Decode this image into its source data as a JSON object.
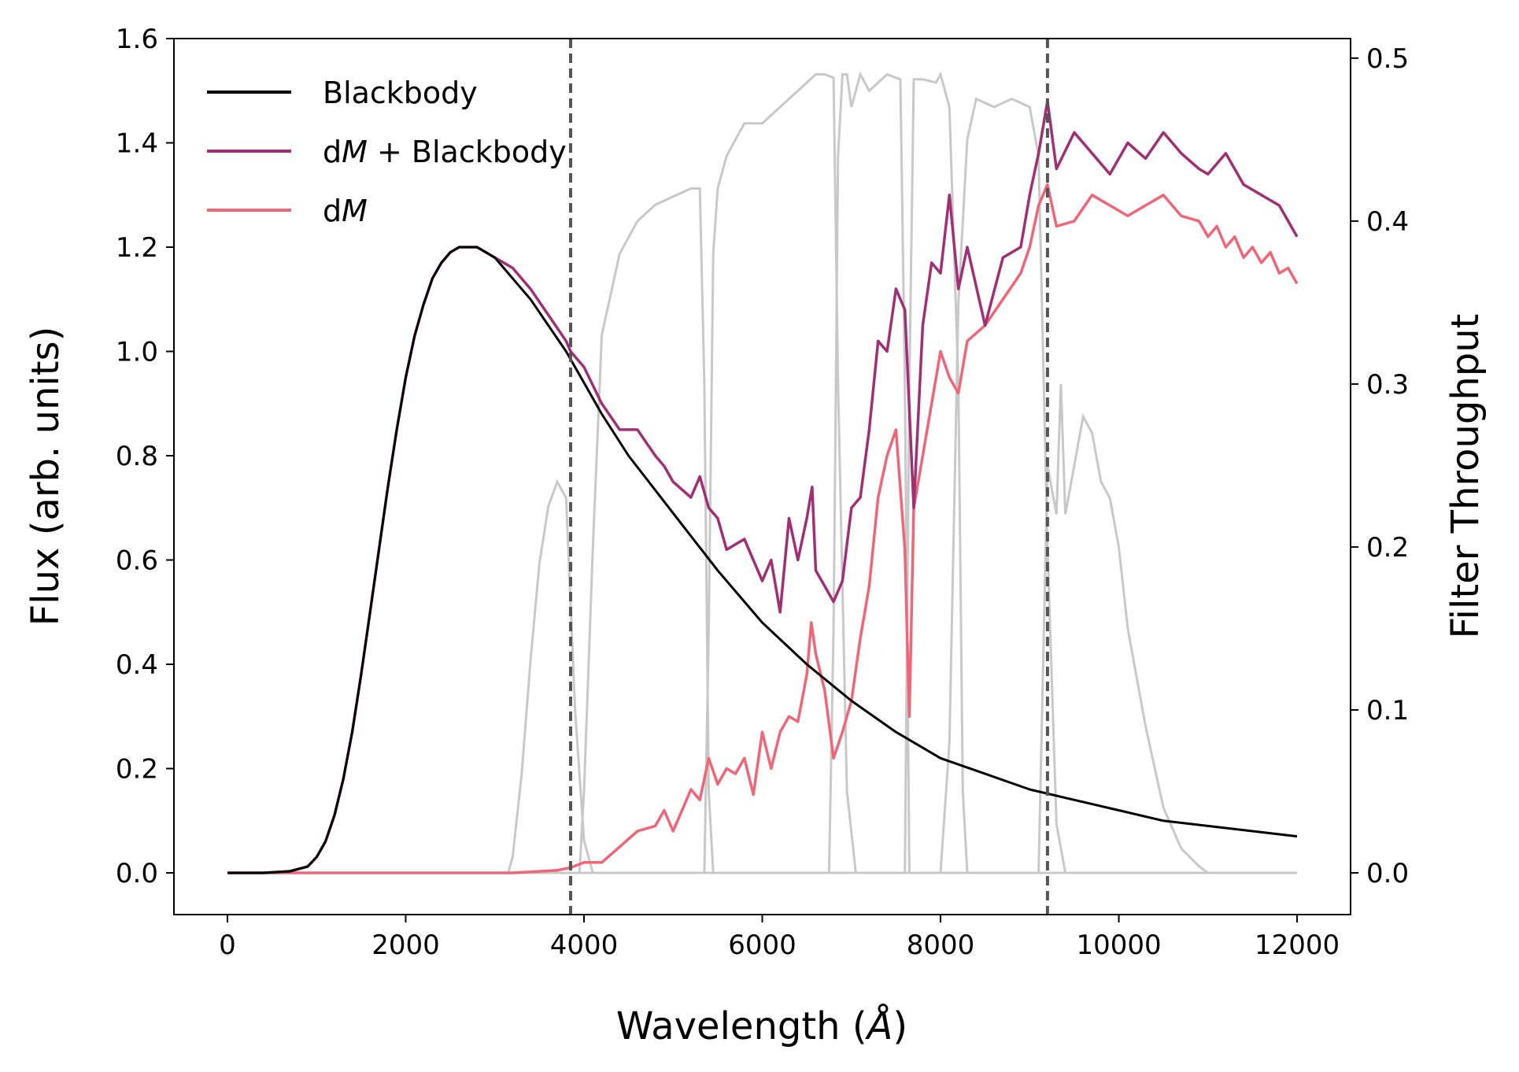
{
  "chart_data": {
    "type": "line",
    "title": "",
    "xlabel": "Wavelength (",
    "xlabel_symbol": "Å",
    "xlabel_close": ")",
    "ylabel": "Flux (arb. units)",
    "ylabel_right": "Filter Throughput",
    "xlim": [
      -600,
      12600
    ],
    "ylim": [
      -0.08,
      1.6
    ],
    "ylim_right": [
      -0.0256,
      0.512
    ],
    "xticks": [
      "0",
      "2000",
      "4000",
      "6000",
      "8000",
      "10000",
      "12000"
    ],
    "yticks": [
      "0.0",
      "0.2",
      "0.4",
      "0.6",
      "0.8",
      "1.0",
      "1.2",
      "1.4",
      "1.6"
    ],
    "yticks_right": [
      "0.0",
      "0.1",
      "0.2",
      "0.3",
      "0.4",
      "0.5"
    ],
    "legend_position": "top-left",
    "grid": false,
    "colors": {
      "blackbody": "#000000",
      "dm_blackbody": "#a03073",
      "dm": "#ee6677",
      "filter": "#c8c8c8",
      "vline": "#555555"
    },
    "vlines_x": [
      3850,
      9200
    ],
    "series": [
      {
        "name": "Blackbody",
        "name_prefix": "",
        "name_italic": "",
        "name_suffix": "Blackbody",
        "x": [
          0,
          400,
          700,
          900,
          1000,
          1100,
          1200,
          1300,
          1400,
          1500,
          1600,
          1700,
          1800,
          1900,
          2000,
          2100,
          2200,
          2300,
          2400,
          2500,
          2600,
          2700,
          2800,
          2900,
          3000,
          3100,
          3200,
          3400,
          3600,
          3800,
          4000,
          4200,
          4500,
          5000,
          5500,
          6000,
          6500,
          7000,
          7500,
          8000,
          8500,
          9000,
          9500,
          10000,
          10500,
          11000,
          11500,
          12000
        ],
        "y": [
          0.0,
          0.0,
          0.003,
          0.012,
          0.03,
          0.06,
          0.11,
          0.18,
          0.27,
          0.38,
          0.5,
          0.62,
          0.74,
          0.85,
          0.95,
          1.03,
          1.09,
          1.14,
          1.17,
          1.19,
          1.2,
          1.2,
          1.2,
          1.19,
          1.18,
          1.16,
          1.14,
          1.1,
          1.05,
          1.0,
          0.94,
          0.88,
          0.8,
          0.69,
          0.58,
          0.48,
          0.4,
          0.33,
          0.27,
          0.22,
          0.19,
          0.16,
          0.14,
          0.12,
          0.1,
          0.09,
          0.08,
          0.07
        ]
      },
      {
        "name": "dM + Blackbody",
        "name_prefix": "d",
        "name_italic": "M",
        "name_suffix": " + Blackbody",
        "x": [
          0,
          400,
          700,
          900,
          1000,
          1100,
          1200,
          1300,
          1400,
          1500,
          1600,
          1700,
          1800,
          1900,
          2000,
          2100,
          2200,
          2300,
          2400,
          2500,
          2600,
          2700,
          2800,
          2900,
          3000,
          3100,
          3200,
          3400,
          3600,
          3800,
          3850,
          4000,
          4200,
          4400,
          4600,
          4800,
          4900,
          5000,
          5200,
          5300,
          5400,
          5500,
          5600,
          5800,
          6000,
          6100,
          6200,
          6300,
          6400,
          6500,
          6560,
          6600,
          6700,
          6800,
          6900,
          7000,
          7100,
          7200,
          7300,
          7400,
          7500,
          7600,
          7700,
          7800,
          7900,
          8000,
          8100,
          8200,
          8300,
          8500,
          8700,
          8900,
          9000,
          9100,
          9200,
          9300,
          9500,
          9700,
          9900,
          10100,
          10300,
          10500,
          10700,
          10900,
          11000,
          11200,
          11400,
          11600,
          11800,
          12000
        ],
        "y": [
          0.0,
          0.0,
          0.003,
          0.012,
          0.03,
          0.06,
          0.11,
          0.18,
          0.27,
          0.38,
          0.5,
          0.62,
          0.74,
          0.85,
          0.95,
          1.03,
          1.09,
          1.14,
          1.17,
          1.19,
          1.2,
          1.2,
          1.2,
          1.19,
          1.18,
          1.17,
          1.16,
          1.12,
          1.07,
          1.02,
          1.0,
          0.97,
          0.9,
          0.85,
          0.85,
          0.8,
          0.78,
          0.75,
          0.72,
          0.76,
          0.7,
          0.68,
          0.62,
          0.64,
          0.56,
          0.6,
          0.5,
          0.68,
          0.6,
          0.68,
          0.74,
          0.58,
          0.55,
          0.52,
          0.56,
          0.7,
          0.72,
          0.85,
          1.02,
          1.0,
          1.12,
          1.08,
          0.7,
          1.05,
          1.17,
          1.15,
          1.3,
          1.12,
          1.2,
          1.05,
          1.18,
          1.2,
          1.3,
          1.38,
          1.48,
          1.35,
          1.42,
          1.38,
          1.34,
          1.4,
          1.37,
          1.42,
          1.38,
          1.35,
          1.34,
          1.38,
          1.32,
          1.3,
          1.28,
          1.22
        ]
      },
      {
        "name": "dM",
        "name_prefix": "d",
        "name_italic": "M",
        "name_suffix": "",
        "x": [
          0,
          3200,
          3400,
          3700,
          3850,
          4000,
          4200,
          4400,
          4600,
          4800,
          4900,
          5000,
          5100,
          5200,
          5300,
          5400,
          5500,
          5600,
          5700,
          5800,
          5900,
          6000,
          6100,
          6200,
          6300,
          6400,
          6500,
          6550,
          6600,
          6700,
          6800,
          6900,
          7000,
          7100,
          7200,
          7300,
          7400,
          7500,
          7600,
          7650,
          7700,
          7800,
          7900,
          8000,
          8100,
          8200,
          8300,
          8500,
          8700,
          8900,
          9000,
          9100,
          9200,
          9300,
          9500,
          9700,
          9900,
          10100,
          10300,
          10500,
          10700,
          10900,
          11000,
          11100,
          11200,
          11300,
          11400,
          11500,
          11600,
          11700,
          11800,
          11900,
          12000
        ],
        "y": [
          0.0,
          0.0,
          0.002,
          0.005,
          0.01,
          0.02,
          0.02,
          0.05,
          0.08,
          0.09,
          0.12,
          0.08,
          0.12,
          0.16,
          0.14,
          0.22,
          0.17,
          0.2,
          0.19,
          0.22,
          0.15,
          0.27,
          0.2,
          0.27,
          0.3,
          0.29,
          0.38,
          0.48,
          0.42,
          0.35,
          0.22,
          0.27,
          0.33,
          0.45,
          0.55,
          0.72,
          0.8,
          0.85,
          0.62,
          0.3,
          0.7,
          0.8,
          0.9,
          1.0,
          0.95,
          0.92,
          1.02,
          1.05,
          1.1,
          1.15,
          1.2,
          1.28,
          1.32,
          1.24,
          1.25,
          1.3,
          1.28,
          1.26,
          1.28,
          1.3,
          1.26,
          1.25,
          1.22,
          1.24,
          1.2,
          1.22,
          1.18,
          1.2,
          1.17,
          1.19,
          1.15,
          1.16,
          1.13
        ]
      }
    ],
    "filters": [
      {
        "x": [
          3150,
          3200,
          3300,
          3400,
          3500,
          3600,
          3700,
          3800,
          3900,
          4000,
          4100
        ],
        "y": [
          0.0,
          0.01,
          0.06,
          0.13,
          0.19,
          0.225,
          0.24,
          0.23,
          0.1,
          0.02,
          0.0
        ]
      },
      {
        "x": [
          3950,
          4000,
          4100,
          4200,
          4400,
          4600,
          4800,
          5000,
          5200,
          5300,
          5350,
          5400,
          5450
        ],
        "y": [
          0.0,
          0.05,
          0.2,
          0.33,
          0.38,
          0.4,
          0.41,
          0.415,
          0.42,
          0.42,
          0.3,
          0.05,
          0.0
        ]
      },
      {
        "x": [
          5350,
          5400,
          5450,
          5500,
          5600,
          5800,
          6000,
          6200,
          6400,
          6600,
          6700,
          6800,
          6850,
          6950,
          7050
        ],
        "y": [
          0.0,
          0.15,
          0.38,
          0.42,
          0.44,
          0.46,
          0.46,
          0.47,
          0.48,
          0.49,
          0.49,
          0.488,
          0.3,
          0.05,
          0.0
        ]
      },
      {
        "x": [
          6750,
          6800,
          6850,
          6900,
          6950,
          7000,
          7050,
          7100,
          7200,
          7400,
          7550,
          7600,
          7650
        ],
        "y": [
          0.0,
          0.15,
          0.44,
          0.49,
          0.49,
          0.47,
          0.48,
          0.49,
          0.48,
          0.49,
          0.487,
          0.3,
          0.0
        ]
      },
      {
        "x": [
          7600,
          7650,
          7700,
          7800,
          7950,
          8000,
          8100,
          8200,
          8250,
          8300
        ],
        "y": [
          0.0,
          0.3,
          0.487,
          0.487,
          0.485,
          0.49,
          0.47,
          0.3,
          0.05,
          0.0
        ]
      },
      {
        "x": [
          8000,
          8100,
          8200,
          8300,
          8400,
          8600,
          8800,
          9000,
          9100,
          9200,
          9300,
          9400
        ],
        "y": [
          0.0,
          0.08,
          0.35,
          0.45,
          0.475,
          0.47,
          0.475,
          0.47,
          0.44,
          0.2,
          0.03,
          0.0
        ]
      },
      {
        "x": [
          9100,
          9200,
          9300,
          9350,
          9400,
          9500,
          9600,
          9700,
          9800,
          9900,
          10000,
          10100,
          10300,
          10500,
          10700,
          10900,
          11000
        ],
        "y": [
          0.0,
          0.25,
          0.22,
          0.3,
          0.22,
          0.25,
          0.28,
          0.27,
          0.24,
          0.23,
          0.2,
          0.15,
          0.09,
          0.04,
          0.015,
          0.004,
          0.0
        ]
      }
    ]
  }
}
